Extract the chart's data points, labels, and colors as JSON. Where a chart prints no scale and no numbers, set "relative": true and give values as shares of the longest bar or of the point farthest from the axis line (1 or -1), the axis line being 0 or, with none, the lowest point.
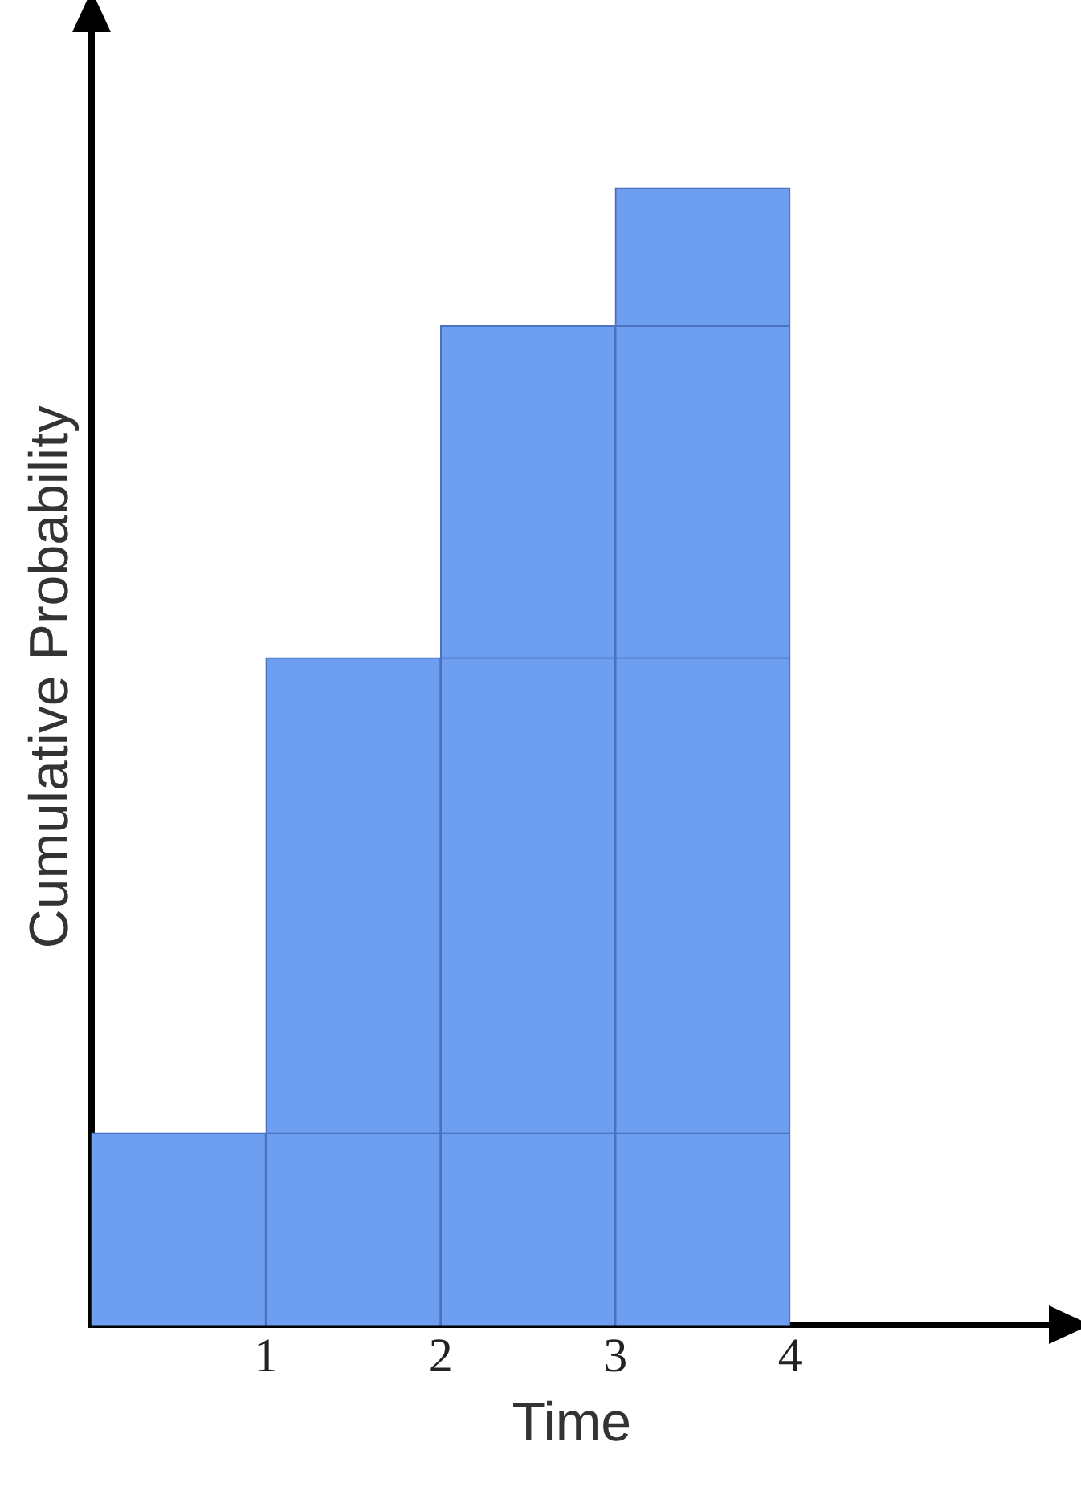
{
  "chart_data": {
    "type": "bar",
    "stacked": true,
    "relative": true,
    "xlabel": "Time",
    "ylabel": "Cumulative Probability",
    "x": [
      0.5,
      1.5,
      2.5,
      3.5
    ],
    "xlim": [
      0,
      5.5
    ],
    "xticks": [
      1,
      2,
      3,
      4
    ],
    "grid": false,
    "legend": false,
    "series": [
      {
        "color": "#6d9eef",
        "values": [
          0.169,
          0.169,
          0.169,
          0.169
        ]
      },
      {
        "color": "#6d9eef",
        "values": [
          null,
          0.418,
          0.418,
          0.418
        ]
      },
      {
        "color": "#6d9eef",
        "values": [
          null,
          null,
          0.292,
          0.292
        ]
      },
      {
        "color": "#6d9eef",
        "values": [
          null,
          null,
          null,
          0.121
        ]
      }
    ]
  }
}
